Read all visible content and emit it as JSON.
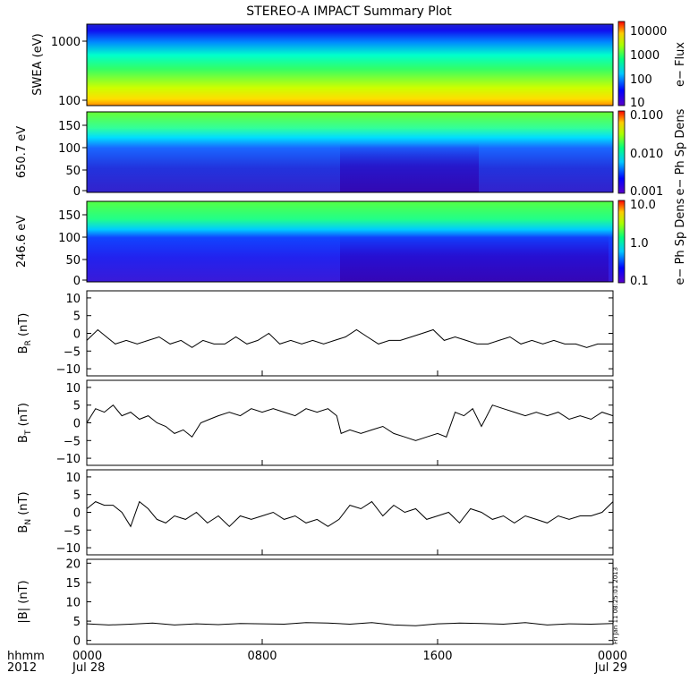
{
  "title": "STEREO-A IMPACT Summary Plot",
  "time_axis": {
    "corner_label_1": "hhmm",
    "corner_label_2": "2012",
    "ticks": [
      {
        "hour": 0,
        "hhmm": "0000",
        "date": "Jul 28"
      },
      {
        "hour": 8,
        "hhmm": "0800",
        "date": ""
      },
      {
        "hour": 16,
        "hhmm": "1600",
        "date": ""
      },
      {
        "hour": 24,
        "hhmm": "0000",
        "date": "Jul 29"
      }
    ]
  },
  "side_stamp": "Fri Jan 11 08:25:01 2013",
  "spectrograms": [
    {
      "ylabel": "SWEA (eV)",
      "log_y": true,
      "yticks": [
        "1000",
        "100"
      ],
      "colorbar_label": "e− Flux",
      "colorbar_ticks": [
        "10000",
        "1000",
        "100",
        "10"
      ],
      "data_summary": "electron energy flux vs time, high flux (red) at 100 eV falling to low flux (blue) near 1500 eV, steady across the day"
    },
    {
      "ylabel": "650.7 eV",
      "log_y": false,
      "yticks": [
        "150",
        "100",
        "50",
        "0"
      ],
      "colorbar_label": "e− Ph Sp Dens",
      "colorbar_ticks": [
        "0.100",
        "0.010",
        "0.001"
      ],
      "data_summary": "pitch-angle distribution, enhanced (green) above ~130 deg, depleted (blue/purple) below, broad depletion 1130-1530"
    },
    {
      "ylabel": "246.6 eV",
      "log_y": false,
      "yticks": [
        "150",
        "100",
        "50",
        "0"
      ],
      "colorbar_label": "e− Ph Sp Dens",
      "colorbar_ticks": [
        "10.0",
        "1.0",
        "0.1"
      ],
      "data_summary": "pitch-angle distribution, enhanced (green) above ~110 deg, purple below 100 deg, variable structure 1130-1600"
    }
  ],
  "chart_data": [
    {
      "type": "line",
      "title": "",
      "ylabel": "B_R (nT)",
      "ylabel_main": "B",
      "ylabel_sub": "R",
      "ylabel_unit": " (nT)",
      "ylim": [
        -12,
        12
      ],
      "yticks": [
        "10",
        "5",
        "0",
        "−5",
        "−10"
      ],
      "x_units": "hours since 2012-07-28 00:00",
      "x": [
        0,
        0.5,
        0.9,
        1.3,
        1.8,
        2.3,
        2.8,
        3.3,
        3.8,
        4.3,
        4.8,
        5.3,
        5.8,
        6.3,
        6.8,
        7.3,
        7.8,
        8.3,
        8.8,
        9.3,
        9.8,
        10.3,
        10.8,
        11.3,
        11.8,
        12.3,
        12.8,
        13.3,
        13.8,
        14.3,
        14.8,
        15.3,
        15.8,
        16.3,
        16.8,
        17.3,
        17.8,
        18.3,
        18.8,
        19.3,
        19.8,
        20.3,
        20.8,
        21.3,
        21.8,
        22.3,
        22.8,
        23.3,
        24
      ],
      "values": [
        -2,
        1,
        -1,
        -3,
        -2,
        -3,
        -2,
        -1,
        -3,
        -2,
        -4,
        -2,
        -3,
        -3,
        -1,
        -3,
        -2,
        0,
        -3,
        -2,
        -3,
        -2,
        -3,
        -2,
        -1,
        1,
        -1,
        -3,
        -2,
        -2,
        -1,
        0,
        1,
        -2,
        -1,
        -2,
        -3,
        -3,
        -2,
        -1,
        -3,
        -2,
        -3,
        -2,
        -3,
        -3,
        -4,
        -3,
        -3
      ]
    },
    {
      "type": "line",
      "title": "",
      "ylabel": "B_T (nT)",
      "ylabel_main": "B",
      "ylabel_sub": "T",
      "ylabel_unit": " (nT)",
      "ylim": [
        -12,
        12
      ],
      "yticks": [
        "10",
        "5",
        "0",
        "−5",
        "−10"
      ],
      "x_units": "hours since 2012-07-28 00:00",
      "x": [
        0,
        0.4,
        0.8,
        1.2,
        1.6,
        2.0,
        2.4,
        2.8,
        3.2,
        3.6,
        4.0,
        4.4,
        4.8,
        5.2,
        5.6,
        6.0,
        6.5,
        7.0,
        7.5,
        8.0,
        8.5,
        9.0,
        9.5,
        10.0,
        10.5,
        11.0,
        11.4,
        11.6,
        12.0,
        12.5,
        13.0,
        13.5,
        14.0,
        14.5,
        15.0,
        15.5,
        16.0,
        16.4,
        16.8,
        17.2,
        17.6,
        18.0,
        18.5,
        19.0,
        19.5,
        20.0,
        20.5,
        21.0,
        21.5,
        22.0,
        22.5,
        23.0,
        23.5,
        24
      ],
      "values": [
        0,
        4,
        3,
        5,
        2,
        3,
        1,
        2,
        0,
        -1,
        -3,
        -2,
        -4,
        0,
        1,
        2,
        3,
        2,
        4,
        3,
        4,
        3,
        2,
        4,
        3,
        4,
        2,
        -3,
        -2,
        -3,
        -2,
        -1,
        -3,
        -4,
        -5,
        -4,
        -3,
        -4,
        3,
        2,
        4,
        -1,
        5,
        4,
        3,
        2,
        3,
        2,
        3,
        1,
        2,
        1,
        3,
        2
      ]
    },
    {
      "type": "line",
      "title": "",
      "ylabel": "B_N (nT)",
      "ylabel_main": "B",
      "ylabel_sub": "N",
      "ylabel_unit": " (nT)",
      "ylim": [
        -12,
        12
      ],
      "yticks": [
        "10",
        "5",
        "0",
        "−5",
        "−10"
      ],
      "x_units": "hours since 2012-07-28 00:00",
      "x": [
        0,
        0.4,
        0.8,
        1.2,
        1.6,
        2.0,
        2.4,
        2.8,
        3.2,
        3.6,
        4.0,
        4.5,
        5.0,
        5.5,
        6.0,
        6.5,
        7.0,
        7.5,
        8.0,
        8.5,
        9.0,
        9.5,
        10.0,
        10.5,
        11.0,
        11.5,
        12.0,
        12.5,
        13.0,
        13.5,
        14.0,
        14.5,
        15.0,
        15.5,
        16.0,
        16.5,
        17.0,
        17.5,
        18.0,
        18.5,
        19.0,
        19.5,
        20.0,
        20.5,
        21.0,
        21.5,
        22.0,
        22.5,
        23.0,
        23.5,
        24
      ],
      "values": [
        1,
        3,
        2,
        2,
        0,
        -4,
        3,
        1,
        -2,
        -3,
        -1,
        -2,
        0,
        -3,
        -1,
        -4,
        -1,
        -2,
        -1,
        0,
        -2,
        -1,
        -3,
        -2,
        -4,
        -2,
        2,
        1,
        3,
        -1,
        2,
        0,
        1,
        -2,
        -1,
        0,
        -3,
        1,
        0,
        -2,
        -1,
        -3,
        -1,
        -2,
        -3,
        -1,
        -2,
        -1,
        -1,
        0,
        3
      ]
    },
    {
      "type": "line",
      "title": "",
      "ylabel": "|B| (nT)",
      "ylabel_main": "|B|",
      "ylabel_sub": "",
      "ylabel_unit": " (nT)",
      "ylim": [
        -1,
        21
      ],
      "yticks": [
        "20",
        "15",
        "10",
        "5",
        "0"
      ],
      "x_units": "hours since 2012-07-28 00:00",
      "x": [
        0,
        1,
        2,
        3,
        4,
        5,
        6,
        7,
        8,
        9,
        10,
        11,
        12,
        13,
        14,
        15,
        16,
        17,
        18,
        19,
        20,
        21,
        22,
        23,
        24
      ],
      "values": [
        4.3,
        4.0,
        4.2,
        4.5,
        4.0,
        4.3,
        4.1,
        4.4,
        4.3,
        4.2,
        4.6,
        4.5,
        4.2,
        4.6,
        4.0,
        3.8,
        4.3,
        4.5,
        4.4,
        4.2,
        4.6,
        4.0,
        4.3,
        4.2,
        4.4
      ]
    }
  ]
}
